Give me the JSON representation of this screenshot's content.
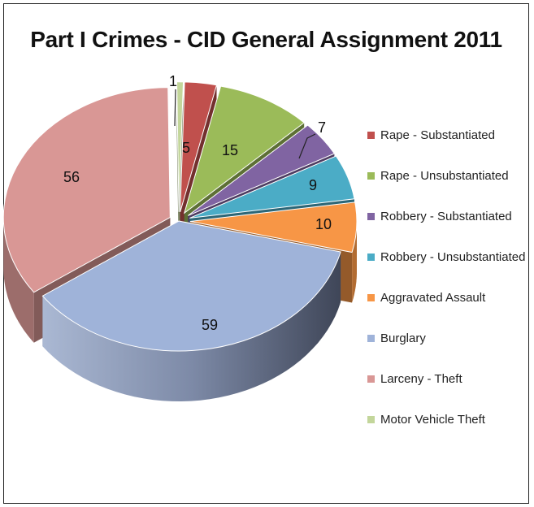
{
  "chart_data": {
    "type": "pie",
    "title": "Part I Crimes - CID General Assignment 2011",
    "categories": [
      "Rape - Substantiated",
      "Rape - Unsubstantiated",
      "Robbery - Substantiated",
      "Robbery - Unsubstantiated",
      "Aggravated Assault",
      "Burglary",
      "Larceny - Theft",
      "Motor Vehicle Theft"
    ],
    "values": [
      5,
      15,
      7,
      9,
      10,
      59,
      56,
      1
    ],
    "colors": [
      "#c0504d",
      "#9bbb59",
      "#8064a2",
      "#4bacc6",
      "#f79646",
      "#9fb3d9",
      "#d99795",
      "#c3d69b"
    ],
    "exploded": true,
    "style": "3d",
    "legend": "right"
  }
}
